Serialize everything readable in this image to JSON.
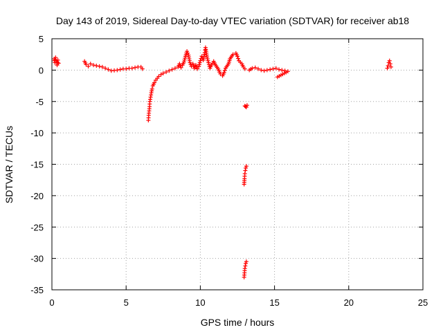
{
  "chart_data": {
    "type": "scatter",
    "title": "Day 143 of 2019, Sidereal Day-to-day VTEC variation (SDTVAR) for receiver ab18",
    "xlabel": "GPS time / hours",
    "ylabel": "SDTVAR / TECUs",
    "xlim": [
      0,
      25
    ],
    "ylim": [
      -35,
      5
    ],
    "xticks": [
      0,
      5,
      10,
      15,
      20,
      25
    ],
    "yticks": [
      5,
      0,
      -5,
      -10,
      -15,
      -20,
      -25,
      -30,
      -35
    ],
    "xtick_labels": [
      "0",
      "5",
      "10",
      "15",
      "20",
      "25"
    ],
    "ytick_labels": [
      "5",
      "0",
      "-5",
      "-10",
      "-15",
      "-20",
      "-25",
      "-30",
      "-35"
    ],
    "grid": true,
    "marker": "+",
    "color": "#ff0000",
    "series": [
      {
        "values": [
          [
            0.15,
            1.8
          ],
          [
            0.2,
            1.2
          ],
          [
            0.25,
            2.0
          ],
          [
            0.3,
            1.5
          ],
          [
            0.35,
            0.8
          ],
          [
            0.4,
            1.6
          ],
          [
            0.45,
            1.1
          ],
          [
            2.2,
            1.4
          ],
          [
            2.3,
            0.9
          ],
          [
            2.45,
            0.6
          ],
          [
            2.6,
            1.0
          ],
          [
            2.8,
            0.8
          ],
          [
            3.0,
            0.7
          ],
          [
            3.2,
            0.6
          ],
          [
            3.4,
            0.5
          ],
          [
            3.6,
            0.3
          ],
          [
            3.8,
            0.1
          ],
          [
            4.0,
            -0.1
          ],
          [
            4.2,
            -0.05
          ],
          [
            4.4,
            0.0
          ],
          [
            4.6,
            0.1
          ],
          [
            4.8,
            0.2
          ],
          [
            5.0,
            0.2
          ],
          [
            5.2,
            0.3
          ],
          [
            5.4,
            0.3
          ],
          [
            5.6,
            0.4
          ],
          [
            5.8,
            0.5
          ],
          [
            6.0,
            0.5
          ],
          [
            6.1,
            0.2
          ],
          [
            6.5,
            -8.0
          ],
          [
            6.52,
            -7.2
          ],
          [
            6.55,
            -6.5
          ],
          [
            6.58,
            -5.8
          ],
          [
            6.6,
            -5.0
          ],
          [
            6.65,
            -4.3
          ],
          [
            6.7,
            -3.6
          ],
          [
            6.75,
            -3.0
          ],
          [
            6.8,
            -2.5
          ],
          [
            6.9,
            -2.0
          ],
          [
            7.0,
            -1.6
          ],
          [
            7.1,
            -1.3
          ],
          [
            7.2,
            -1.0
          ],
          [
            7.35,
            -0.7
          ],
          [
            7.5,
            -0.5
          ],
          [
            7.7,
            -0.3
          ],
          [
            7.9,
            -0.1
          ],
          [
            8.1,
            0.1
          ],
          [
            8.3,
            0.3
          ],
          [
            8.5,
            0.5
          ],
          [
            8.6,
            1.0
          ],
          [
            8.7,
            0.4
          ],
          [
            8.8,
            0.8
          ],
          [
            8.9,
            1.3
          ],
          [
            9.0,
            2.2
          ],
          [
            9.1,
            3.0
          ],
          [
            9.2,
            2.4
          ],
          [
            9.3,
            1.2
          ],
          [
            9.4,
            0.6
          ],
          [
            9.5,
            1.0
          ],
          [
            9.6,
            0.3
          ],
          [
            9.7,
            0.8
          ],
          [
            9.8,
            0.2
          ],
          [
            9.9,
            0.6
          ],
          [
            10.0,
            1.5
          ],
          [
            10.1,
            2.2
          ],
          [
            10.2,
            1.6
          ],
          [
            10.3,
            2.8
          ],
          [
            10.35,
            3.6
          ],
          [
            10.45,
            2.1
          ],
          [
            10.55,
            1.2
          ],
          [
            10.65,
            0.3
          ],
          [
            10.75,
            0.8
          ],
          [
            10.9,
            1.4
          ],
          [
            11.0,
            0.9
          ],
          [
            11.2,
            0.2
          ],
          [
            11.35,
            -0.6
          ],
          [
            11.5,
            -0.9
          ],
          [
            11.6,
            -0.4
          ],
          [
            11.7,
            0.3
          ],
          [
            11.9,
            1.0
          ],
          [
            12.0,
            1.8
          ],
          [
            12.2,
            2.5
          ],
          [
            12.4,
            2.7
          ],
          [
            12.5,
            2.2
          ],
          [
            12.6,
            1.5
          ],
          [
            12.8,
            1.0
          ],
          [
            12.9,
            0.5
          ],
          [
            13.0,
            0.2
          ],
          [
            13.0,
            -5.7
          ],
          [
            13.05,
            -5.8
          ],
          [
            13.1,
            -5.9
          ],
          [
            13.15,
            -5.6
          ],
          [
            12.95,
            -18.2
          ],
          [
            12.98,
            -17.3
          ],
          [
            13.0,
            -16.5
          ],
          [
            13.03,
            -16.0
          ],
          [
            13.06,
            -15.6
          ],
          [
            13.1,
            -15.3
          ],
          [
            12.95,
            -33.0
          ],
          [
            12.98,
            -32.3
          ],
          [
            13.0,
            -31.6
          ],
          [
            13.03,
            -31.2
          ],
          [
            13.06,
            -30.8
          ],
          [
            13.1,
            -30.5
          ],
          [
            13.3,
            0.0
          ],
          [
            13.5,
            0.3
          ],
          [
            13.7,
            0.4
          ],
          [
            13.9,
            0.2
          ],
          [
            14.1,
            0.0
          ],
          [
            14.3,
            -0.1
          ],
          [
            14.5,
            0.0
          ],
          [
            14.7,
            0.1
          ],
          [
            14.9,
            0.2
          ],
          [
            15.1,
            0.3
          ],
          [
            15.3,
            0.1
          ],
          [
            15.5,
            0.0
          ],
          [
            15.7,
            -0.1
          ],
          [
            15.9,
            -0.2
          ],
          [
            15.2,
            -1.1
          ],
          [
            22.6,
            0.3
          ],
          [
            22.65,
            0.7
          ],
          [
            22.7,
            1.2
          ],
          [
            22.75,
            1.5
          ],
          [
            22.8,
            1.0
          ],
          [
            22.85,
            0.5
          ]
        ]
      }
    ]
  }
}
